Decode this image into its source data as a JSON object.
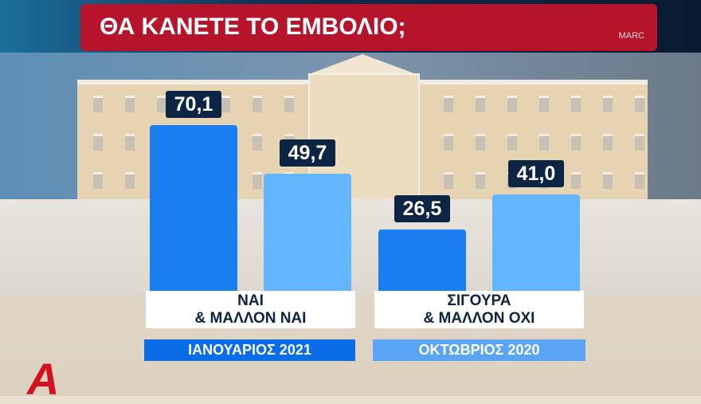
{
  "header": {
    "title": "ΘΑ ΚΑΝΕΤΕ ΤΟ ΕΜΒΟΛΙΟ;",
    "source": "MARC"
  },
  "logo": "Α",
  "chart_data": {
    "type": "bar",
    "title": "ΘΑ ΚΑΝΕΤΕ ΤΟ ΕΜΒΟΛΙΟ;",
    "categories": [
      [
        "ΝΑΙ",
        "& ΜΑΛΛΟΝ ΝΑΙ"
      ],
      [
        "ΣΙΓΟΥΡΑ",
        "& ΜΑΛΛΟΝ ΟΧΙ"
      ]
    ],
    "series": [
      {
        "name": "ΙΑΝΟΥΑΡΙΟΣ 2021",
        "color": "#1a7ef0",
        "values": [
          70.1,
          26.5
        ],
        "labels": [
          "70,1",
          "26,5"
        ]
      },
      {
        "name": "ΟΚΤΩΒΡΙΟΣ 2020",
        "color": "#63b6fb",
        "values": [
          49.7,
          41.0
        ],
        "labels": [
          "49,7",
          "41,0"
        ]
      }
    ],
    "legend_colors": [
      "#0a6ce6",
      "#5aa4f5"
    ],
    "legend": "bottom",
    "grid": false
  }
}
